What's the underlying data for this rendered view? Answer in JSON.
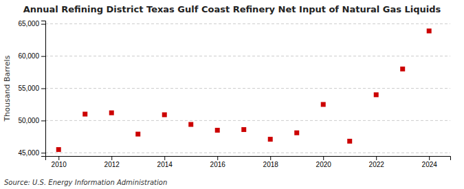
{
  "chart_data": {
    "type": "scatter",
    "title": "Annual Refining District Texas Gulf Coast Refinery Net Input of Natural Gas Liquids",
    "y_label": "Thousand Barrels",
    "annotations": [
      "Source: U.S. Energy Information Administration"
    ],
    "x": [
      2010,
      2011,
      2012,
      2013,
      2014,
      2015,
      2016,
      2017,
      2018,
      2019,
      2020,
      2021,
      2022,
      2023,
      2024
    ],
    "values": [
      45500,
      51000,
      51200,
      47900,
      50900,
      49400,
      48500,
      48600,
      47100,
      48100,
      52500,
      46800,
      54000,
      58000,
      63900
    ],
    "color": "#cc0000",
    "marker": "square",
    "xlim": [
      2009.5,
      2024.8
    ],
    "xticks": [
      2010,
      2012,
      2014,
      2016,
      2018,
      2020,
      2022,
      2024
    ],
    "ylim": [
      44500,
      65500
    ],
    "yticks": [
      {
        "value": 45000,
        "label": "45,000"
      },
      {
        "value": 50000,
        "label": "50,000"
      },
      {
        "value": 55000,
        "label": "55,000"
      },
      {
        "value": 60000,
        "label": "60,000"
      },
      {
        "value": 65000,
        "label": "65,000"
      }
    ],
    "grid": true
  }
}
